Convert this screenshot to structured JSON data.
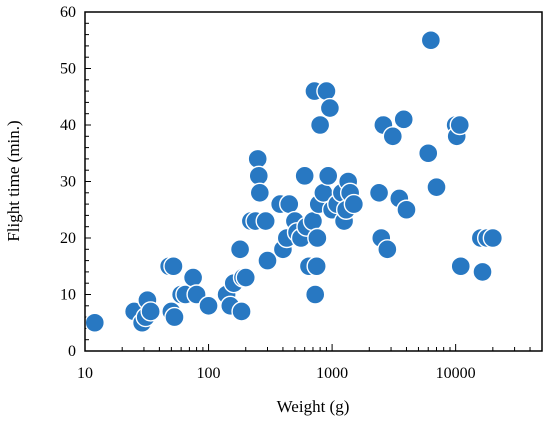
{
  "chart_data": {
    "type": "scatter",
    "title": "",
    "xlabel": "Weight (g)",
    "ylabel": "Flight time (min.)",
    "x_scale": "log",
    "xlim": [
      10,
      50000
    ],
    "ylim": [
      0,
      60
    ],
    "x_ticks": [
      10,
      100,
      1000,
      10000
    ],
    "x_tick_labels": [
      "10",
      "100",
      "1000",
      "10000"
    ],
    "y_ticks": [
      0,
      10,
      20,
      30,
      40,
      50,
      60
    ],
    "y_tick_labels": [
      "0",
      "10",
      "20",
      "30",
      "40",
      "50",
      "60"
    ],
    "grid": false,
    "legend": "none",
    "marker_color": "#2878c2",
    "points": [
      {
        "x": 12,
        "y": 5
      },
      {
        "x": 25,
        "y": 7
      },
      {
        "x": 29,
        "y": 5
      },
      {
        "x": 31,
        "y": 6
      },
      {
        "x": 32,
        "y": 9
      },
      {
        "x": 34,
        "y": 7
      },
      {
        "x": 48,
        "y": 15
      },
      {
        "x": 52,
        "y": 15
      },
      {
        "x": 50,
        "y": 7
      },
      {
        "x": 53,
        "y": 6
      },
      {
        "x": 60,
        "y": 10
      },
      {
        "x": 65,
        "y": 10
      },
      {
        "x": 75,
        "y": 13
      },
      {
        "x": 80,
        "y": 10
      },
      {
        "x": 100,
        "y": 8
      },
      {
        "x": 140,
        "y": 10
      },
      {
        "x": 150,
        "y": 8
      },
      {
        "x": 160,
        "y": 12
      },
      {
        "x": 180,
        "y": 18
      },
      {
        "x": 185,
        "y": 7
      },
      {
        "x": 190,
        "y": 13
      },
      {
        "x": 200,
        "y": 13
      },
      {
        "x": 220,
        "y": 23
      },
      {
        "x": 240,
        "y": 23
      },
      {
        "x": 250,
        "y": 34
      },
      {
        "x": 255,
        "y": 31
      },
      {
        "x": 260,
        "y": 28
      },
      {
        "x": 290,
        "y": 23
      },
      {
        "x": 300,
        "y": 16
      },
      {
        "x": 380,
        "y": 26
      },
      {
        "x": 400,
        "y": 18
      },
      {
        "x": 430,
        "y": 20
      },
      {
        "x": 450,
        "y": 26
      },
      {
        "x": 500,
        "y": 23
      },
      {
        "x": 520,
        "y": 21
      },
      {
        "x": 560,
        "y": 20
      },
      {
        "x": 600,
        "y": 31
      },
      {
        "x": 620,
        "y": 22
      },
      {
        "x": 650,
        "y": 15
      },
      {
        "x": 700,
        "y": 23
      },
      {
        "x": 720,
        "y": 46
      },
      {
        "x": 730,
        "y": 10
      },
      {
        "x": 750,
        "y": 15
      },
      {
        "x": 760,
        "y": 20
      },
      {
        "x": 780,
        "y": 26
      },
      {
        "x": 800,
        "y": 40
      },
      {
        "x": 850,
        "y": 28
      },
      {
        "x": 900,
        "y": 46
      },
      {
        "x": 930,
        "y": 31
      },
      {
        "x": 960,
        "y": 43
      },
      {
        "x": 1000,
        "y": 25
      },
      {
        "x": 1100,
        "y": 26
      },
      {
        "x": 1200,
        "y": 28
      },
      {
        "x": 1250,
        "y": 23
      },
      {
        "x": 1300,
        "y": 25
      },
      {
        "x": 1350,
        "y": 30
      },
      {
        "x": 1400,
        "y": 28
      },
      {
        "x": 1500,
        "y": 26
      },
      {
        "x": 2400,
        "y": 28
      },
      {
        "x": 2500,
        "y": 20
      },
      {
        "x": 2600,
        "y": 40
      },
      {
        "x": 2800,
        "y": 18
      },
      {
        "x": 3100,
        "y": 38
      },
      {
        "x": 3500,
        "y": 27
      },
      {
        "x": 3800,
        "y": 41
      },
      {
        "x": 4000,
        "y": 25
      },
      {
        "x": 6000,
        "y": 35
      },
      {
        "x": 6300,
        "y": 55
      },
      {
        "x": 7000,
        "y": 29
      },
      {
        "x": 10000,
        "y": 40
      },
      {
        "x": 10200,
        "y": 38
      },
      {
        "x": 10800,
        "y": 40
      },
      {
        "x": 11000,
        "y": 15
      },
      {
        "x": 16000,
        "y": 20
      },
      {
        "x": 16500,
        "y": 14
      },
      {
        "x": 18000,
        "y": 20
      },
      {
        "x": 20000,
        "y": 20
      }
    ]
  }
}
